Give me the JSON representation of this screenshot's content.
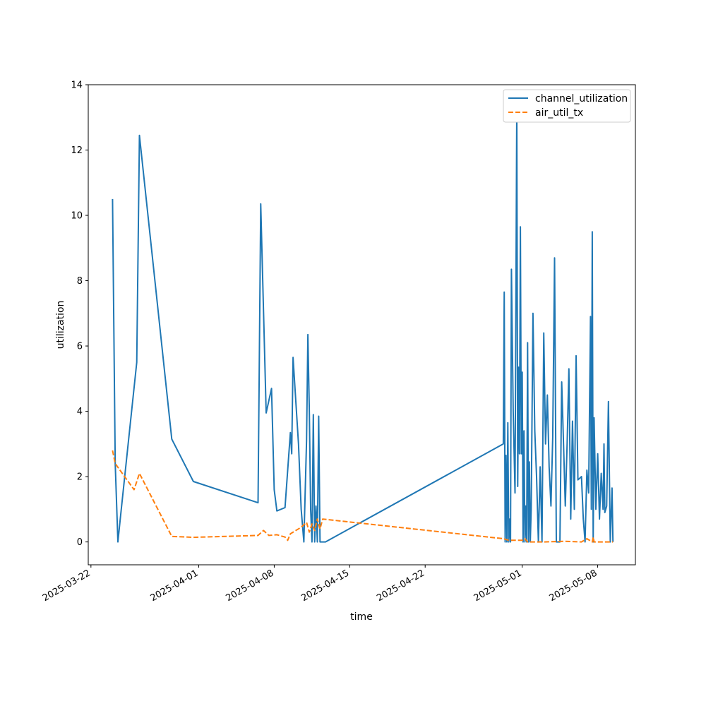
{
  "chart_data": {
    "type": "line",
    "title": "",
    "xlabel": "time",
    "ylabel": "utilization",
    "xlim": [
      "2025-03-21T18:00",
      "2025-05-11T12:00"
    ],
    "ylim": [
      -0.7,
      14
    ],
    "x_ticks": [
      "2025-03-22",
      "2025-04-01",
      "2025-04-08",
      "2025-04-15",
      "2025-04-22",
      "2025-05-01",
      "2025-05-08"
    ],
    "y_ticks": [
      0,
      2,
      4,
      6,
      8,
      10,
      12,
      14
    ],
    "grid": false,
    "legend_position": "top-right",
    "series": [
      {
        "name": "channel_utilization",
        "color": "#1f77b4",
        "style": "solid",
        "points": [
          [
            "2025-03-24T00:00",
            10.5
          ],
          [
            "2025-03-24T06:00",
            2.4
          ],
          [
            "2025-03-24T12:00",
            0.0
          ],
          [
            "2025-03-24T18:00",
            0.8
          ],
          [
            "2025-03-26T06:00",
            5.5
          ],
          [
            "2025-03-26T12:00",
            12.45
          ],
          [
            "2025-03-29T12:00",
            3.15
          ],
          [
            "2025-03-31T12:00",
            1.85
          ],
          [
            "2025-04-06T12:00",
            1.2
          ],
          [
            "2025-04-06T18:00",
            10.35
          ],
          [
            "2025-04-07T06:00",
            3.95
          ],
          [
            "2025-04-07T18:00",
            4.7
          ],
          [
            "2025-04-08T00:00",
            1.6
          ],
          [
            "2025-04-08T06:00",
            0.95
          ],
          [
            "2025-04-09T00:00",
            1.05
          ],
          [
            "2025-04-09T12:00",
            3.35
          ],
          [
            "2025-04-09T15:00",
            2.7
          ],
          [
            "2025-04-09T18:00",
            5.65
          ],
          [
            "2025-04-10T06:00",
            3.0
          ],
          [
            "2025-04-10T12:00",
            1.0
          ],
          [
            "2025-04-10T18:00",
            0.0
          ],
          [
            "2025-04-11T00:00",
            3.1
          ],
          [
            "2025-04-11T03:00",
            6.35
          ],
          [
            "2025-04-11T06:00",
            4.05
          ],
          [
            "2025-04-11T09:00",
            1.0
          ],
          [
            "2025-04-11T12:00",
            0.0
          ],
          [
            "2025-04-11T15:00",
            3.9
          ],
          [
            "2025-04-11T18:00",
            0.0
          ],
          [
            "2025-04-11T21:00",
            1.1
          ],
          [
            "2025-04-12T00:00",
            0.0
          ],
          [
            "2025-04-12T03:00",
            3.85
          ],
          [
            "2025-04-12T06:00",
            0.0
          ],
          [
            "2025-04-12T12:00",
            0.0
          ],
          [
            "2025-04-12T18:00",
            0.0
          ],
          [
            "2025-04-29T06:00",
            3.0
          ],
          [
            "2025-04-29T08:00",
            7.65
          ],
          [
            "2025-04-29T10:00",
            0.0
          ],
          [
            "2025-04-29T12:00",
            2.65
          ],
          [
            "2025-04-29T14:00",
            0.0
          ],
          [
            "2025-04-29T16:00",
            3.65
          ],
          [
            "2025-04-29T18:00",
            0.0
          ],
          [
            "2025-04-29T20:00",
            0.7
          ],
          [
            "2025-04-29T22:00",
            0.0
          ],
          [
            "2025-04-30T00:00",
            8.35
          ],
          [
            "2025-04-30T04:00",
            4.0
          ],
          [
            "2025-04-30T08:00",
            1.5
          ],
          [
            "2025-04-30T12:00",
            13.35
          ],
          [
            "2025-04-30T14:00",
            1.7
          ],
          [
            "2025-04-30T16:00",
            5.35
          ],
          [
            "2025-04-30T18:00",
            2.7
          ],
          [
            "2025-04-30T20:00",
            9.65
          ],
          [
            "2025-04-30T22:00",
            2.7
          ],
          [
            "2025-05-01T00:00",
            5.2
          ],
          [
            "2025-05-01T02:00",
            0.0
          ],
          [
            "2025-05-01T04:00",
            3.4
          ],
          [
            "2025-05-01T06:00",
            0.0
          ],
          [
            "2025-05-01T08:00",
            1.1
          ],
          [
            "2025-05-01T10:00",
            0.0
          ],
          [
            "2025-05-01T12:00",
            6.1
          ],
          [
            "2025-05-01T14:00",
            0.0
          ],
          [
            "2025-05-01T16:00",
            2.45
          ],
          [
            "2025-05-01T18:00",
            0.0
          ],
          [
            "2025-05-01T20:00",
            1.0
          ],
          [
            "2025-05-02T00:00",
            7.0
          ],
          [
            "2025-05-02T04:00",
            3.4
          ],
          [
            "2025-05-02T08:00",
            2.0
          ],
          [
            "2025-05-02T12:00",
            0.0
          ],
          [
            "2025-05-02T16:00",
            2.3
          ],
          [
            "2025-05-02T20:00",
            0.0
          ],
          [
            "2025-05-03T00:00",
            6.4
          ],
          [
            "2025-05-03T04:00",
            3.0
          ],
          [
            "2025-05-03T08:00",
            4.5
          ],
          [
            "2025-05-03T12:00",
            2.3
          ],
          [
            "2025-05-03T16:00",
            1.1
          ],
          [
            "2025-05-03T20:00",
            3.2
          ],
          [
            "2025-05-04T00:00",
            8.7
          ],
          [
            "2025-05-04T04:00",
            0.0
          ],
          [
            "2025-05-04T08:00",
            0.0
          ],
          [
            "2025-05-04T12:00",
            0.0
          ],
          [
            "2025-05-04T16:00",
            4.9
          ],
          [
            "2025-05-04T20:00",
            3.0
          ],
          [
            "2025-05-05T00:00",
            1.1
          ],
          [
            "2025-05-05T04:00",
            3.0
          ],
          [
            "2025-05-05T08:00",
            5.3
          ],
          [
            "2025-05-05T12:00",
            0.7
          ],
          [
            "2025-05-05T16:00",
            3.7
          ],
          [
            "2025-05-05T20:00",
            1.0
          ],
          [
            "2025-05-06T00:00",
            5.7
          ],
          [
            "2025-05-06T04:00",
            1.9
          ],
          [
            "2025-05-06T12:00",
            2.0
          ],
          [
            "2025-05-06T16:00",
            0.7
          ],
          [
            "2025-05-06T20:00",
            0.0
          ],
          [
            "2025-05-07T00:00",
            2.2
          ],
          [
            "2025-05-07T04:00",
            1.5
          ],
          [
            "2025-05-07T08:00",
            6.9
          ],
          [
            "2025-05-07T10:00",
            1.0
          ],
          [
            "2025-05-07T12:00",
            9.5
          ],
          [
            "2025-05-07T14:00",
            0.0
          ],
          [
            "2025-05-07T16:00",
            3.8
          ],
          [
            "2025-05-07T20:00",
            1.0
          ],
          [
            "2025-05-08T00:00",
            2.7
          ],
          [
            "2025-05-08T04:00",
            0.7
          ],
          [
            "2025-05-08T08:00",
            2.1
          ],
          [
            "2025-05-08T12:00",
            1.0
          ],
          [
            "2025-05-08T14:00",
            3.0
          ],
          [
            "2025-05-08T16:00",
            0.9
          ],
          [
            "2025-05-08T20:00",
            1.1
          ],
          [
            "2025-05-09T00:00",
            4.3
          ],
          [
            "2025-05-09T04:00",
            0.0
          ],
          [
            "2025-05-09T08:00",
            1.65
          ],
          [
            "2025-05-09T10:00",
            0.0
          ]
        ]
      },
      {
        "name": "air_util_tx",
        "color": "#ff7f0e",
        "style": "dashed",
        "points": [
          [
            "2025-03-24T00:00",
            2.8
          ],
          [
            "2025-03-24T06:00",
            2.4
          ],
          [
            "2025-03-26T00:00",
            1.6
          ],
          [
            "2025-03-26T12:00",
            2.1
          ],
          [
            "2025-03-29T12:00",
            0.17
          ],
          [
            "2025-03-31T12:00",
            0.14
          ],
          [
            "2025-04-06T12:00",
            0.2
          ],
          [
            "2025-04-07T00:00",
            0.35
          ],
          [
            "2025-04-07T12:00",
            0.2
          ],
          [
            "2025-04-08T06:00",
            0.22
          ],
          [
            "2025-04-09T00:00",
            0.15
          ],
          [
            "2025-04-09T06:00",
            0.05
          ],
          [
            "2025-04-09T12:00",
            0.25
          ],
          [
            "2025-04-10T12:00",
            0.45
          ],
          [
            "2025-04-11T00:00",
            0.6
          ],
          [
            "2025-04-11T06:00",
            0.3
          ],
          [
            "2025-04-11T12:00",
            0.55
          ],
          [
            "2025-04-11T18:00",
            0.35
          ],
          [
            "2025-04-12T00:00",
            0.7
          ],
          [
            "2025-04-12T06:00",
            0.4
          ],
          [
            "2025-04-12T12:00",
            0.7
          ],
          [
            "2025-04-29T06:00",
            0.1
          ],
          [
            "2025-04-29T18:00",
            0.05
          ],
          [
            "2025-05-01T00:00",
            0.05
          ],
          [
            "2025-05-01T06:00",
            0.1
          ],
          [
            "2025-05-01T12:00",
            0.0
          ],
          [
            "2025-05-03T00:00",
            0.0
          ],
          [
            "2025-05-05T00:00",
            0.02
          ],
          [
            "2025-05-06T12:00",
            0.0
          ],
          [
            "2025-05-07T00:00",
            0.1
          ],
          [
            "2025-05-07T12:00",
            0.0
          ],
          [
            "2025-05-07T14:00",
            0.15
          ],
          [
            "2025-05-07T16:00",
            0.0
          ],
          [
            "2025-05-09T10:00",
            0.0
          ]
        ]
      }
    ]
  }
}
